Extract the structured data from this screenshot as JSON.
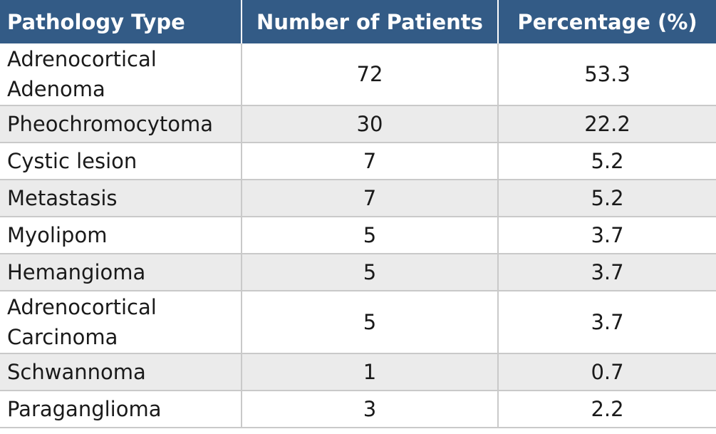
{
  "table": {
    "headers": [
      "Pathology Type",
      "Number of Patients",
      "Percentage (%)"
    ],
    "rows": [
      {
        "type": [
          "Adrenocortical",
          "Adenoma"
        ],
        "patients": "72",
        "percentage": "53.3"
      },
      {
        "type": [
          "Pheochromocytoma"
        ],
        "patients": "30",
        "percentage": "22.2"
      },
      {
        "type": [
          "Cystic lesion"
        ],
        "patients": "7",
        "percentage": "5.2"
      },
      {
        "type": [
          "Metastasis"
        ],
        "patients": "7",
        "percentage": "5.2"
      },
      {
        "type": [
          "Myolipom"
        ],
        "patients": "5",
        "percentage": "3.7"
      },
      {
        "type": [
          "Hemangioma"
        ],
        "patients": "5",
        "percentage": "3.7"
      },
      {
        "type": [
          "Adrenocortical",
          "Carcinoma"
        ],
        "patients": "5",
        "percentage": "3.7"
      },
      {
        "type": [
          "Schwannoma"
        ],
        "patients": "1",
        "percentage": "0.7"
      },
      {
        "type": [
          "Paraganglioma"
        ],
        "patients": "3",
        "percentage": "2.2"
      }
    ]
  },
  "colors": {
    "header_bg": "#335b86",
    "header_text": "#ffffff",
    "row_alt_bg": "#ebebeb",
    "grid_line": "#c9c9c9"
  }
}
